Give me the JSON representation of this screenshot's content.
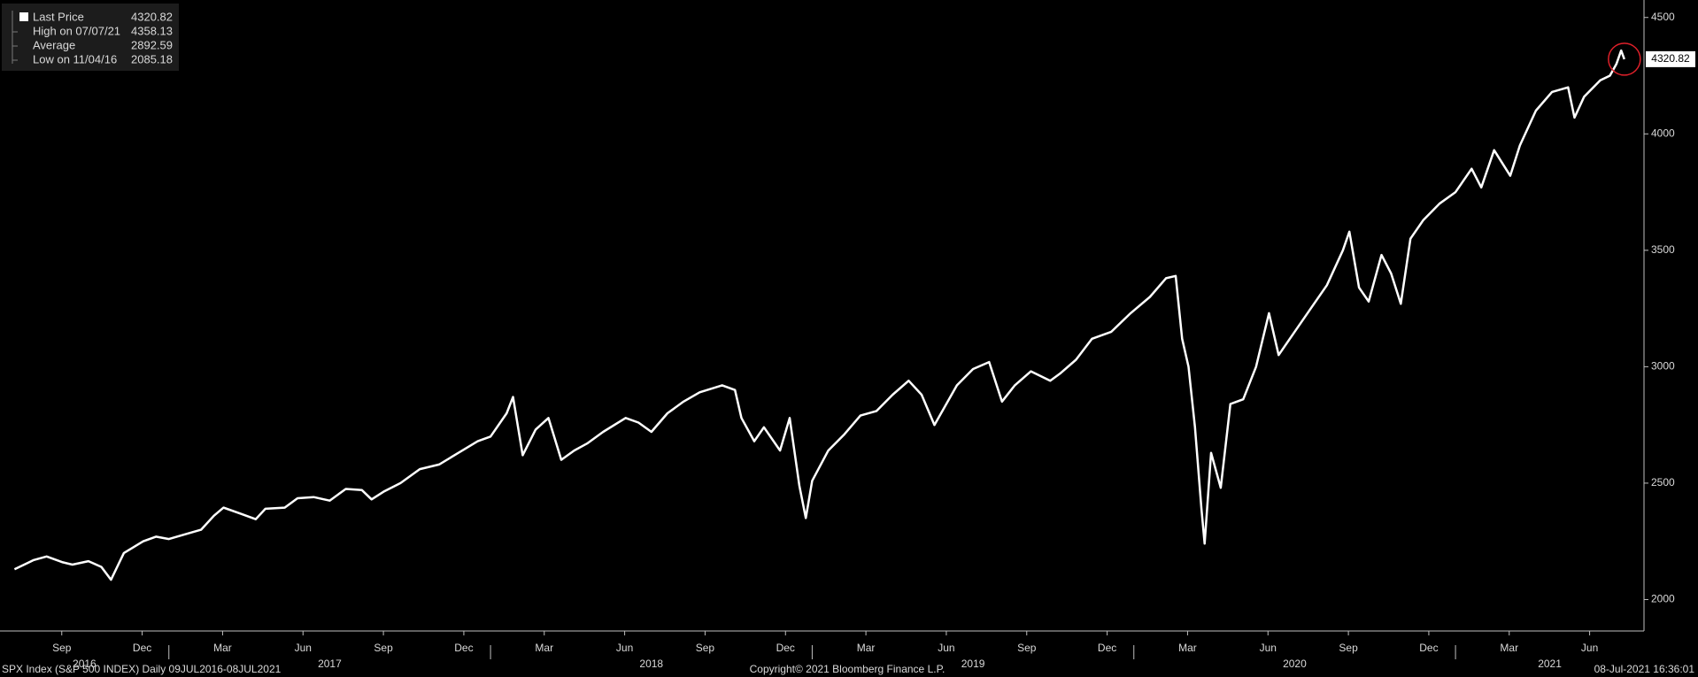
{
  "chart_data": {
    "type": "line",
    "x": [
      2016.52,
      2016.58,
      2016.62,
      2016.67,
      2016.7,
      2016.75,
      2016.79,
      2016.82,
      2016.86,
      2016.92,
      2016.96,
      2017.0,
      2017.05,
      2017.1,
      2017.14,
      2017.17,
      2017.22,
      2017.27,
      2017.3,
      2017.36,
      2017.4,
      2017.45,
      2017.5,
      2017.55,
      2017.6,
      2017.63,
      2017.67,
      2017.72,
      2017.78,
      2017.84,
      2017.9,
      2017.96,
      2018.0,
      2018.05,
      2018.07,
      2018.1,
      2018.14,
      2018.18,
      2018.22,
      2018.26,
      2018.3,
      2018.35,
      2018.42,
      2018.46,
      2018.5,
      2018.55,
      2018.6,
      2018.65,
      2018.72,
      2018.76,
      2018.78,
      2018.82,
      2018.85,
      2018.9,
      2018.93,
      2018.96,
      2018.98,
      2019.0,
      2019.05,
      2019.1,
      2019.15,
      2019.2,
      2019.25,
      2019.3,
      2019.34,
      2019.38,
      2019.45,
      2019.5,
      2019.55,
      2019.59,
      2019.63,
      2019.68,
      2019.74,
      2019.77,
      2019.82,
      2019.87,
      2019.93,
      2019.99,
      2020.05,
      2020.1,
      2020.13,
      2020.15,
      2020.17,
      2020.19,
      2020.21,
      2020.22,
      2020.24,
      2020.27,
      2020.3,
      2020.34,
      2020.38,
      2020.42,
      2020.45,
      2020.5,
      2020.55,
      2020.6,
      2020.65,
      2020.67,
      2020.7,
      2020.73,
      2020.77,
      2020.8,
      2020.83,
      2020.86,
      2020.9,
      2020.95,
      2021.0,
      2021.05,
      2021.08,
      2021.12,
      2021.17,
      2021.2,
      2021.25,
      2021.3,
      2021.35,
      2021.37,
      2021.4,
      2021.45,
      2021.48,
      2021.5,
      2021.515,
      2021.525
    ],
    "series": [
      {
        "name": "Last Price",
        "color": "#ffffff",
        "values": [
          2130,
          2170,
          2185,
          2160,
          2150,
          2165,
          2140,
          2085,
          2200,
          2250,
          2270,
          2260,
          2280,
          2300,
          2360,
          2395,
          2370,
          2345,
          2390,
          2395,
          2435,
          2440,
          2425,
          2475,
          2470,
          2430,
          2465,
          2500,
          2560,
          2580,
          2630,
          2680,
          2700,
          2800,
          2870,
          2620,
          2730,
          2780,
          2600,
          2640,
          2670,
          2720,
          2780,
          2760,
          2720,
          2800,
          2850,
          2890,
          2920,
          2900,
          2780,
          2680,
          2740,
          2640,
          2780,
          2490,
          2350,
          2510,
          2640,
          2710,
          2790,
          2810,
          2880,
          2940,
          2880,
          2750,
          2920,
          2990,
          3020,
          2850,
          2920,
          2980,
          2940,
          2970,
          3030,
          3120,
          3150,
          3230,
          3300,
          3380,
          3390,
          3120,
          3000,
          2740,
          2390,
          2240,
          2630,
          2480,
          2840,
          2860,
          3000,
          3230,
          3050,
          3150,
          3250,
          3350,
          3500,
          3580,
          3340,
          3280,
          3480,
          3400,
          3270,
          3550,
          3630,
          3700,
          3750,
          3850,
          3770,
          3930,
          3820,
          3950,
          4100,
          4180,
          4200,
          4070,
          4160,
          4230,
          4250,
          4300,
          4358,
          4320.82
        ]
      }
    ],
    "xlim": [
      2016.475,
      2021.586
    ],
    "xticks": [
      {
        "value": 2016.667,
        "label": "Sep"
      },
      {
        "value": 2016.917,
        "label": "Dec"
      },
      {
        "value": 2017.167,
        "label": "Mar"
      },
      {
        "value": 2017.417,
        "label": "Jun"
      },
      {
        "value": 2017.667,
        "label": "Sep"
      },
      {
        "value": 2017.917,
        "label": "Dec"
      },
      {
        "value": 2018.167,
        "label": "Mar"
      },
      {
        "value": 2018.417,
        "label": "Jun"
      },
      {
        "value": 2018.667,
        "label": "Sep"
      },
      {
        "value": 2018.917,
        "label": "Dec"
      },
      {
        "value": 2019.167,
        "label": "Mar"
      },
      {
        "value": 2019.417,
        "label": "Jun"
      },
      {
        "value": 2019.667,
        "label": "Sep"
      },
      {
        "value": 2019.917,
        "label": "Dec"
      },
      {
        "value": 2020.167,
        "label": "Mar"
      },
      {
        "value": 2020.417,
        "label": "Jun"
      },
      {
        "value": 2020.667,
        "label": "Sep"
      },
      {
        "value": 2020.917,
        "label": "Dec"
      },
      {
        "value": 2021.167,
        "label": "Mar"
      },
      {
        "value": 2021.417,
        "label": "Jun"
      }
    ],
    "year_ticks": [
      2016,
      2017,
      2018,
      2019,
      2020,
      2021
    ],
    "ylim": [
      1865,
      4575
    ],
    "yticks": [
      2000,
      2500,
      3000,
      3500,
      4000,
      4500
    ],
    "legend": [
      {
        "label": "High on 07/07/21",
        "value": 4358.13
      },
      {
        "label": "Average",
        "value": 2892.59
      },
      {
        "label": "Low on 11/04/16",
        "value": 2085.18
      }
    ],
    "last_price": 4320.82,
    "highlight_color": "#e0202a",
    "footer": {
      "left": "SPX Index (S&P 500 INDEX)  Daily 09JUL2016-08JUL2021",
      "center": "Copyright© 2021 Bloomberg Finance L.P.",
      "right": "08-Jul-2021 16:36:01"
    }
  }
}
